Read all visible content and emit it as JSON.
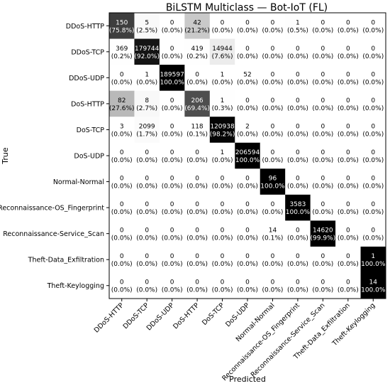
{
  "chart_data": {
    "type": "heatmap",
    "title": "BiLSTM Multiclass — Bot-IoT (FL)",
    "xlabel": "Predicted",
    "ylabel": "True",
    "classes": [
      "DDoS-HTTP",
      "DDoS-TCP",
      "DDoS-UDP",
      "DoS-HTTP",
      "DoS-TCP",
      "DoS-UDP",
      "Normal-Normal",
      "Reconnaissance-OS_Fingerprint",
      "Reconnaissance-Service_Scan",
      "Theft-Data_Exfiltration",
      "Theft-Keylogging"
    ],
    "counts": [
      [
        150,
        5,
        0,
        42,
        0,
        0,
        0,
        1,
        0,
        0,
        0
      ],
      [
        369,
        179744,
        0,
        419,
        14944,
        0,
        0,
        0,
        0,
        0,
        0
      ],
      [
        0,
        1,
        189597,
        0,
        1,
        52,
        0,
        0,
        0,
        0,
        0
      ],
      [
        82,
        8,
        0,
        206,
        1,
        0,
        0,
        0,
        0,
        0,
        0
      ],
      [
        3,
        2099,
        0,
        118,
        120938,
        2,
        0,
        0,
        0,
        0,
        0
      ],
      [
        0,
        0,
        0,
        0,
        1,
        206594,
        0,
        0,
        0,
        0,
        0
      ],
      [
        0,
        0,
        0,
        0,
        0,
        0,
        96,
        0,
        0,
        0,
        0
      ],
      [
        0,
        0,
        0,
        0,
        0,
        0,
        0,
        3583,
        0,
        0,
        0
      ],
      [
        0,
        0,
        0,
        0,
        0,
        0,
        14,
        0,
        14620,
        0,
        0
      ],
      [
        0,
        0,
        0,
        0,
        0,
        0,
        0,
        0,
        0,
        0,
        1
      ],
      [
        0,
        0,
        0,
        0,
        0,
        0,
        0,
        0,
        0,
        0,
        14
      ]
    ],
    "percents": [
      [
        "75.8%",
        "2.5%",
        "0.0%",
        "21.2%",
        "0.0%",
        "0.0%",
        "0.0%",
        "0.5%",
        "0.0%",
        "0.0%",
        "0.0%"
      ],
      [
        "0.2%",
        "92.0%",
        "0.0%",
        "0.2%",
        "7.6%",
        "0.0%",
        "0.0%",
        "0.0%",
        "0.0%",
        "0.0%",
        "0.0%"
      ],
      [
        "0.0%",
        "0.0%",
        "100.0%",
        "0.0%",
        "0.0%",
        "0.0%",
        "0.0%",
        "0.0%",
        "0.0%",
        "0.0%",
        "0.0%"
      ],
      [
        "27.6%",
        "2.7%",
        "0.0%",
        "69.4%",
        "0.3%",
        "0.0%",
        "0.0%",
        "0.0%",
        "0.0%",
        "0.0%",
        "0.0%"
      ],
      [
        "0.0%",
        "1.7%",
        "0.0%",
        "0.1%",
        "98.2%",
        "0.0%",
        "0.0%",
        "0.0%",
        "0.0%",
        "0.0%",
        "0.0%"
      ],
      [
        "0.0%",
        "0.0%",
        "0.0%",
        "0.0%",
        "0.0%",
        "100.0%",
        "0.0%",
        "0.0%",
        "0.0%",
        "0.0%",
        "0.0%"
      ],
      [
        "0.0%",
        "0.0%",
        "0.0%",
        "0.0%",
        "0.0%",
        "0.0%",
        "100.0%",
        "0.0%",
        "0.0%",
        "0.0%",
        "0.0%"
      ],
      [
        "0.0%",
        "0.0%",
        "0.0%",
        "0.0%",
        "0.0%",
        "0.0%",
        "0.0%",
        "100.0%",
        "0.0%",
        "0.0%",
        "0.0%"
      ],
      [
        "0.0%",
        "0.0%",
        "0.0%",
        "0.0%",
        "0.0%",
        "0.0%",
        "0.1%",
        "0.0%",
        "99.9%",
        "0.0%",
        "0.0%"
      ],
      [
        "0.0%",
        "0.0%",
        "0.0%",
        "0.0%",
        "0.0%",
        "0.0%",
        "0.0%",
        "0.0%",
        "0.0%",
        "0.0%",
        "100.0%"
      ],
      [
        "0.0%",
        "0.0%",
        "0.0%",
        "0.0%",
        "0.0%",
        "0.0%",
        "0.0%",
        "0.0%",
        "0.0%",
        "0.0%",
        "100.0%"
      ]
    ],
    "colormap": "row-normalized grayscale (white = 0%, black = 100%)",
    "grid": false,
    "legend": "none"
  },
  "colors": {
    "low": "#ffffff",
    "high": "#000000",
    "dark_text": "#000000",
    "light_text": "#ffffff"
  }
}
